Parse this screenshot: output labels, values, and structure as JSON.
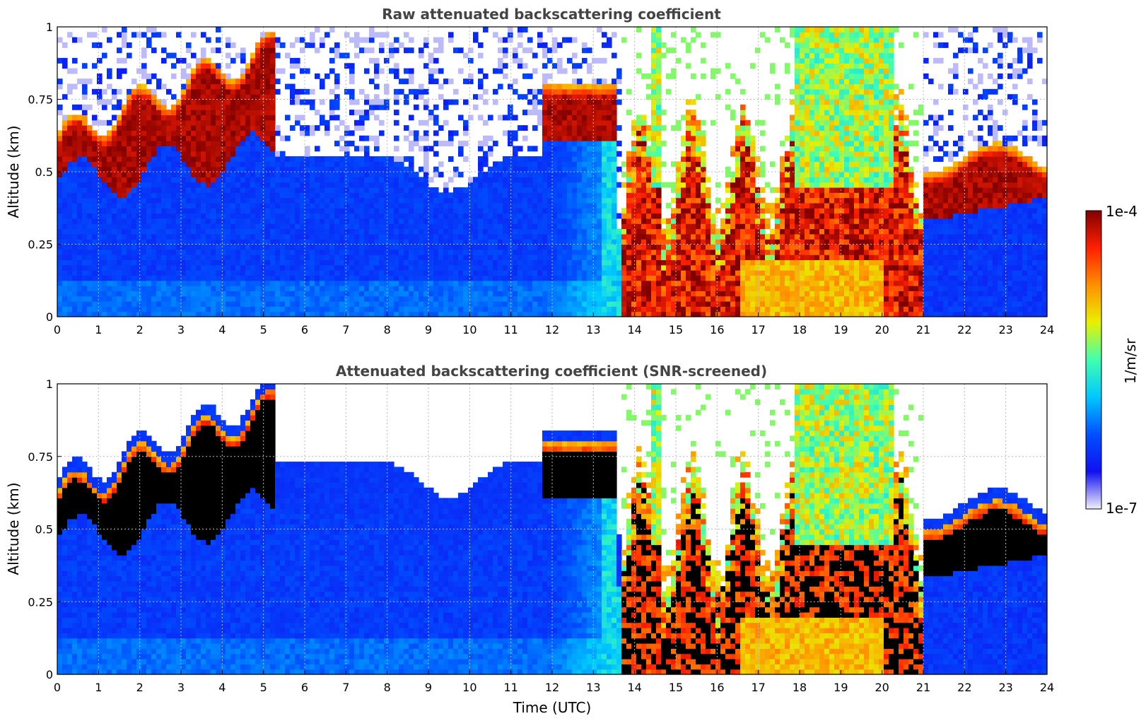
{
  "chart_data": [
    {
      "type": "heatmap",
      "title": "Raw attenuated backscattering coefficient",
      "xlabel": "",
      "ylabel": "Altitude (km)",
      "xlim": [
        0,
        24
      ],
      "ylim": [
        0,
        1
      ],
      "xticks": [
        "0",
        "1",
        "2",
        "3",
        "4",
        "5",
        "6",
        "7",
        "8",
        "9",
        "10",
        "11",
        "12",
        "13",
        "14",
        "15",
        "16",
        "17",
        "18",
        "19",
        "20",
        "21",
        "22",
        "23",
        "24"
      ],
      "yticks": [
        "0",
        "0.25",
        "0.5",
        "0.75",
        "1"
      ],
      "grid": true,
      "variable": "attenuated backscattering coefficient",
      "snr_screened": false,
      "features": [
        {
          "name": "boundary layer aerosol",
          "t_start": 0,
          "t_end": 13.3,
          "alt_top": 0.45
        },
        {
          "name": "cloud layer",
          "t_start": 0,
          "t_end": 5.3,
          "alt_base": 0.45,
          "alt_top": 0.95
        },
        {
          "name": "cloud layer",
          "t_start": 11.8,
          "t_end": 13.6,
          "alt_base": 0.6,
          "alt_top": 0.8
        },
        {
          "name": "precipitation / dense cloud",
          "t_start": 13.7,
          "t_end": 21.0,
          "alt_top": 1.0
        },
        {
          "name": "cloud layer",
          "t_start": 21.0,
          "t_end": 24,
          "alt_base": 0.33,
          "alt_top": 0.6
        }
      ]
    },
    {
      "type": "heatmap",
      "title": "Attenuated backscattering coefficient (SNR-screened)",
      "xlabel": "Time (UTC)",
      "ylabel": "Altitude (km)",
      "xlim": [
        0,
        24
      ],
      "ylim": [
        0,
        1
      ],
      "xticks": [
        "0",
        "1",
        "2",
        "3",
        "4",
        "5",
        "6",
        "7",
        "8",
        "9",
        "10",
        "11",
        "12",
        "13",
        "14",
        "15",
        "16",
        "17",
        "18",
        "19",
        "20",
        "21",
        "22",
        "23",
        "24"
      ],
      "yticks": [
        "0",
        "0.25",
        "0.5",
        "0.75",
        "1"
      ],
      "grid": true,
      "variable": "attenuated backscattering coefficient",
      "snr_screened": true
    }
  ],
  "colorbar": {
    "label": "1/m/sr",
    "max_label": "1e-4",
    "min_label": "1e-7",
    "scale": "log",
    "colors": [
      "#f2f0fa",
      "#1010f0",
      "#0050ff",
      "#00c8ff",
      "#40ffb0",
      "#e8f000",
      "#ff9000",
      "#ff2000",
      "#800000"
    ]
  },
  "colors": {
    "background": "#ffffff",
    "title": "#444444",
    "axis": "#000000",
    "grid": "#b8b8b8",
    "saturated": "#000000"
  }
}
